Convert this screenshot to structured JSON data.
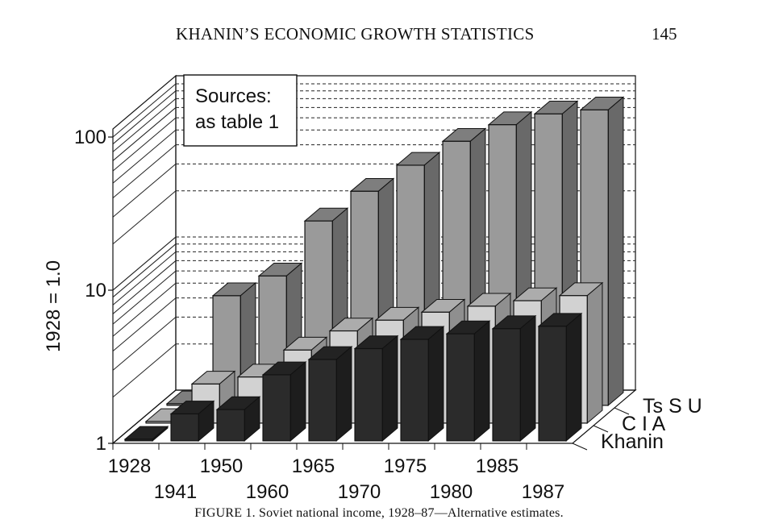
{
  "header": {
    "running_title": "KHANIN’S ECONOMIC GROWTH STATISTICS",
    "page_number": "145"
  },
  "caption": "FIGURE 1. Soviet national income, 1928–87—Alternative estimates.",
  "chart_data": {
    "type": "bar",
    "subtype": "3d-grouped-bar",
    "ylabel": "1928 = 1.0",
    "y_scale": "log",
    "ylim": [
      1,
      100
    ],
    "y_ticks": [
      "1",
      "10",
      "100"
    ],
    "note_box": [
      "Sources:",
      "as table 1"
    ],
    "categories": [
      "1928",
      "1941",
      "1950",
      "1960",
      "1965",
      "1970",
      "1975",
      "1980",
      "1985",
      "1987"
    ],
    "series": [
      {
        "name": "Khanin",
        "color": "#2b2b2b",
        "values": [
          1.0,
          1.5,
          1.6,
          2.7,
          3.4,
          4.0,
          4.6,
          5.0,
          5.4,
          5.6
        ]
      },
      {
        "name": "C I A",
        "color": "#d2d2d2",
        "values": [
          1.0,
          1.8,
          2.0,
          3.0,
          4.0,
          4.7,
          5.3,
          5.8,
          6.3,
          6.8
        ]
      },
      {
        "name": "Ts S U",
        "color": "#9a9a9a",
        "values": [
          1.0,
          5.2,
          7.0,
          16.0,
          25.0,
          37.0,
          53.0,
          68.0,
          80.0,
          85.0
        ]
      }
    ]
  }
}
